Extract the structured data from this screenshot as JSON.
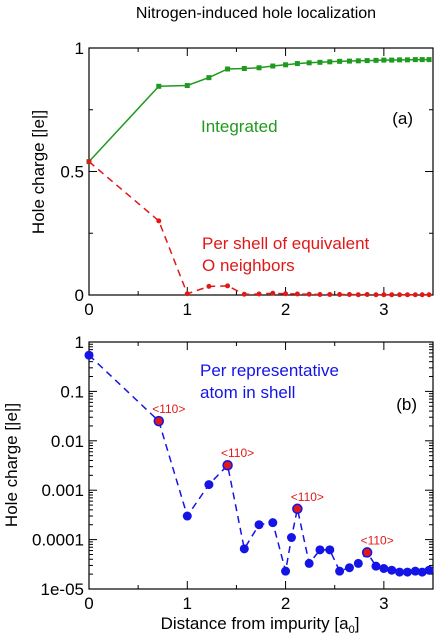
{
  "figure_title": "Nitrogen-induced hole localization",
  "x_axis_label_main": "Distance from impurity [a",
  "x_axis_label_sub": "0",
  "x_axis_label_close": "]",
  "chart_data": [
    {
      "type": "line",
      "panel_label": "(a)",
      "ylabel": "Hole charge [|e|]",
      "xlim": [
        0,
        3.5
      ],
      "ylim": [
        0,
        1
      ],
      "y_scale": "linear",
      "grid": false,
      "x_ticks": [
        0,
        1,
        2,
        3
      ],
      "x_tick_labels": [
        "0",
        "1",
        "2",
        "3"
      ],
      "y_ticks": [
        0,
        0.5,
        1
      ],
      "y_tick_labels": [
        "0",
        "0.5",
        "1"
      ],
      "series": [
        {
          "label_lines": [
            "Integrated"
          ],
          "color": "#1f9a1f",
          "line_style": "solid",
          "marker": "square",
          "x": [
            0,
            0.71,
            1.0,
            1.22,
            1.41,
            1.58,
            1.73,
            1.87,
            2.0,
            2.12,
            2.24,
            2.35,
            2.45,
            2.55,
            2.65,
            2.74,
            2.83,
            2.92,
            3.0,
            3.08,
            3.16,
            3.24,
            3.32,
            3.39,
            3.46
          ],
          "y": [
            0.54,
            0.845,
            0.848,
            0.88,
            0.915,
            0.917,
            0.92,
            0.927,
            0.932,
            0.937,
            0.94,
            0.942,
            0.944,
            0.946,
            0.947,
            0.948,
            0.949,
            0.95,
            0.951,
            0.951,
            0.952,
            0.952,
            0.953,
            0.953,
            0.953
          ]
        },
        {
          "label_lines": [
            "Per shell of equivalent",
            "O neighbors"
          ],
          "color": "#e01818",
          "line_style": "dashed",
          "marker": "circle",
          "x": [
            0,
            0.71,
            1.0,
            1.22,
            1.41,
            1.58,
            1.73,
            1.87,
            2.0,
            2.12,
            2.24,
            2.35,
            2.45,
            2.55,
            2.65,
            2.74,
            2.83,
            2.92,
            3.0,
            3.08,
            3.16,
            3.24,
            3.32,
            3.39,
            3.46
          ],
          "y": [
            0.54,
            0.3,
            0.005,
            0.035,
            0.037,
            0.003,
            0.004,
            0.007,
            0.005,
            0.004,
            0.003,
            0.002,
            0.002,
            0.002,
            0.002,
            0.001,
            0.002,
            0.001,
            0.001,
            0.001,
            0.001,
            0.001,
            0.001,
            0.001,
            0.001
          ]
        }
      ]
    },
    {
      "type": "line",
      "panel_label": "(b)",
      "ylabel": "Hole charge [|e|]",
      "xlim": [
        0,
        3.5
      ],
      "ylim": [
        1e-05,
        1
      ],
      "y_scale": "log",
      "grid": false,
      "x_ticks": [
        0,
        1,
        2,
        3
      ],
      "x_tick_labels": [
        "0",
        "1",
        "2",
        "3"
      ],
      "y_ticks": [
        1,
        0.1,
        0.01,
        0.001,
        0.0001,
        1e-05
      ],
      "y_tick_labels": [
        "1",
        "0.1",
        "0.01",
        "0.001",
        "0.0001",
        "1e-05"
      ],
      "series": [
        {
          "label_lines": [
            "Per representative",
            "atom in shell"
          ],
          "color": "#1414e6",
          "line_style": "dashed",
          "marker": "circle",
          "x": [
            0,
            0.71,
            1.0,
            1.22,
            1.41,
            1.58,
            1.73,
            1.87,
            2.0,
            2.06,
            2.12,
            2.24,
            2.35,
            2.45,
            2.55,
            2.65,
            2.74,
            2.83,
            2.92,
            3.0,
            3.08,
            3.16,
            3.24,
            3.32,
            3.39,
            3.46
          ],
          "y": [
            0.54,
            0.025,
            0.0003,
            0.0013,
            0.0032,
            6.5e-05,
            0.0002,
            0.00022,
            2.3e-05,
            0.00011,
            0.00042,
            3.3e-05,
            6.2e-05,
            6.2e-05,
            2.3e-05,
            2.7e-05,
            3.3e-05,
            5.5e-05,
            2.9e-05,
            2.6e-05,
            2.4e-05,
            2.2e-05,
            2.2e-05,
            2.3e-05,
            2.2e-05,
            2.4e-05
          ]
        }
      ],
      "annotations": [
        {
          "text": "<110>",
          "x": 0.71,
          "y": 0.025
        },
        {
          "text": "<110>",
          "x": 1.41,
          "y": 0.0032
        },
        {
          "text": "<110>",
          "x": 2.12,
          "y": 0.00042
        },
        {
          "text": "<110>",
          "x": 2.83,
          "y": 5.5e-05
        }
      ],
      "annotation_color": "#e01818"
    }
  ]
}
